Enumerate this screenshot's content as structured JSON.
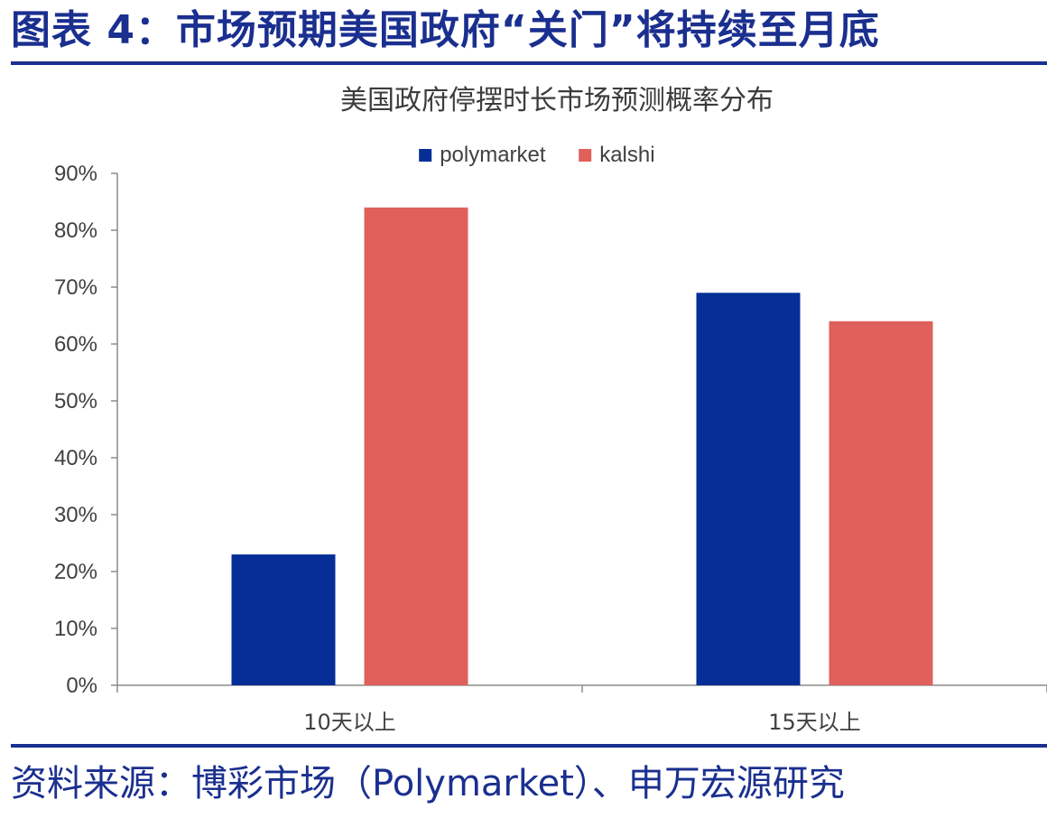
{
  "figure": {
    "title": "图表 4：市场预期美国政府“关门”将持续至月底",
    "source": "资料来源：博彩市场（Polymarket）、申万宏源研究"
  },
  "colors": {
    "polymarket": "#052e96",
    "kalshi": "#e0605c",
    "accent": "#1a2f8f"
  },
  "chart_data": {
    "type": "bar",
    "title": "美国政府停摆时长市场预测概率分布",
    "categories": [
      "10天以上",
      "15天以上"
    ],
    "series": [
      {
        "name": "polymarket",
        "values": [
          23,
          69
        ]
      },
      {
        "name": "kalshi",
        "values": [
          84,
          64
        ]
      }
    ],
    "ylim": [
      0,
      90
    ],
    "ytick_step": 10,
    "ytick_labels": [
      "0%",
      "10%",
      "20%",
      "30%",
      "40%",
      "50%",
      "60%",
      "70%",
      "80%",
      "90%"
    ],
    "xlabel": "",
    "ylabel": "",
    "grid": false,
    "legend_position": "top-center"
  }
}
